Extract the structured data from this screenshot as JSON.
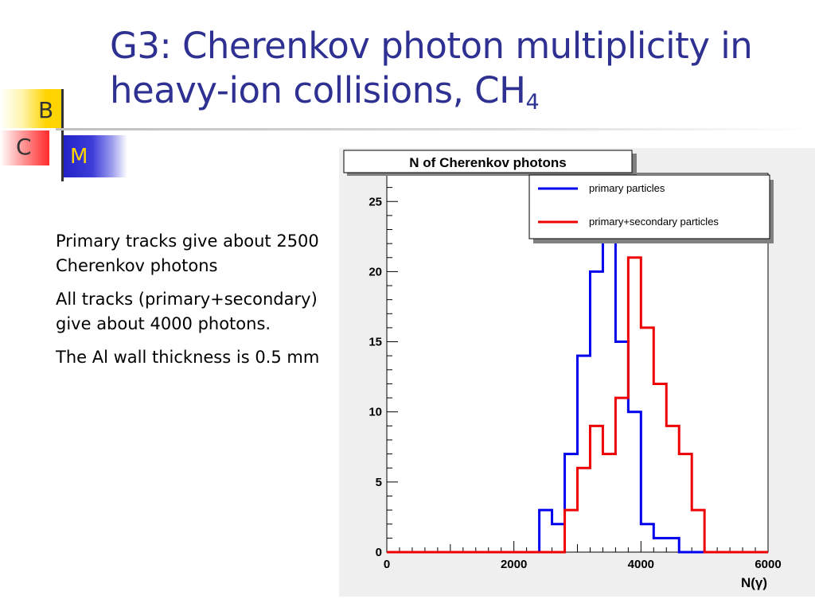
{
  "slide": {
    "title_main": "G3: Cherenkov photon multiplicity in heavy-ion collisions, CH",
    "title_sub": "4",
    "logo": {
      "b": "B",
      "c": "C",
      "m": "M"
    },
    "bullets": [
      "Primary tracks give about 2500 Cherenkov photons",
      "All tracks (primary+secondary) give about 4000 photons.",
      "The Al wall thickness is 0.5 mm"
    ]
  },
  "chart_data": {
    "type": "line",
    "title": "N of Cherenkov photons",
    "xlabel": "N(γ)",
    "ylabel": "",
    "xlim": [
      0,
      6000
    ],
    "ylim": [
      0,
      27
    ],
    "x_ticks": [
      0,
      2000,
      4000,
      6000
    ],
    "y_ticks": [
      0,
      5,
      10,
      15,
      20,
      25
    ],
    "grid": false,
    "legend": "top-right",
    "bin_width": 200,
    "series": [
      {
        "name": "primary particles",
        "color": "#0000ee",
        "bins": [
          [
            2400,
            3
          ],
          [
            2600,
            2
          ],
          [
            2800,
            7
          ],
          [
            3000,
            14
          ],
          [
            3200,
            20
          ],
          [
            3400,
            25
          ],
          [
            3600,
            15
          ],
          [
            3800,
            10
          ],
          [
            4000,
            2
          ],
          [
            4200,
            1
          ],
          [
            4400,
            1
          ]
        ]
      },
      {
        "name": "primary+secondary particles",
        "color": "#ee0000",
        "bins": [
          [
            2800,
            3
          ],
          [
            3000,
            6
          ],
          [
            3200,
            9
          ],
          [
            3400,
            7
          ],
          [
            3600,
            11
          ],
          [
            3800,
            21
          ],
          [
            4000,
            16
          ],
          [
            4200,
            12
          ],
          [
            4400,
            9
          ],
          [
            4600,
            7
          ],
          [
            4800,
            3
          ]
        ]
      }
    ]
  }
}
